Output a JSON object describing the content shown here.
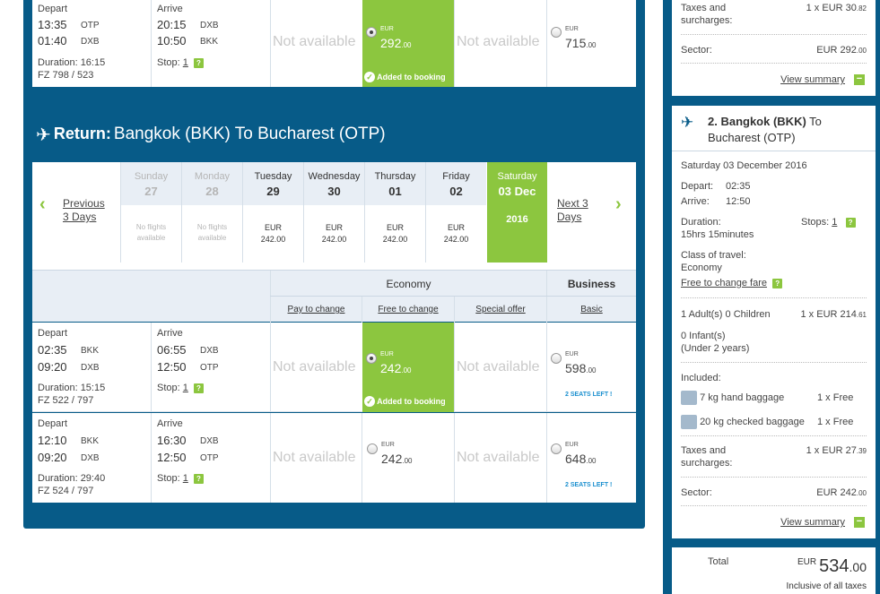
{
  "outbound_row": {
    "depart_label": "Depart",
    "arrive_label": "Arrive",
    "dep1_time": "13:35",
    "dep1_code": "OTP",
    "dep2_time": "01:40",
    "dep2_code": "DXB",
    "arr1_time": "20:15",
    "arr1_code": "DXB",
    "arr2_time": "10:50",
    "arr2_code": "BKK",
    "duration": "Duration: 16:15",
    "flight": "FZ 798 / 523",
    "stop_label": "Stop:",
    "stop_count": "1",
    "na1": "Not available",
    "na2": "Not available",
    "sel_eur": "EUR",
    "sel_price": "292",
    "sel_cents": ".00",
    "added": "Added to booking",
    "biz_eur": "EUR",
    "biz_price": "715",
    "biz_cents": ".00"
  },
  "return_header": {
    "label": "Return:",
    "route": "Bangkok (BKK) To Bucharest (OTP)"
  },
  "dates": {
    "prev": "Previous",
    "prev2": "3 Days",
    "next": "Next 3",
    "next2": "Days",
    "days": [
      {
        "dow": "Sunday",
        "day": "27",
        "p1": "No flights",
        "p2": "available"
      },
      {
        "dow": "Monday",
        "day": "28",
        "p1": "No flights",
        "p2": "available"
      },
      {
        "dow": "Tuesday",
        "day": "29",
        "p1": "EUR",
        "p2": "242.00"
      },
      {
        "dow": "Wednesday",
        "day": "30",
        "p1": "EUR",
        "p2": "242.00"
      },
      {
        "dow": "Thursday",
        "day": "01",
        "p1": "EUR",
        "p2": "242.00"
      },
      {
        "dow": "Friday",
        "day": "02",
        "p1": "EUR",
        "p2": "242.00"
      },
      {
        "dow": "Saturday",
        "day": "03 Dec",
        "p1": "2016",
        "p2": ""
      }
    ]
  },
  "fare_header": {
    "economy": "Economy",
    "business": "Business",
    "pay": "Pay to change",
    "free": "Free to change",
    "special": "Special offer",
    "basic": "Basic"
  },
  "return_rows": [
    {
      "depart_label": "Depart",
      "arrive_label": "Arrive",
      "dep1_time": "02:35",
      "dep1_code": "BKK",
      "dep2_time": "09:20",
      "dep2_code": "DXB",
      "arr1_time": "06:55",
      "arr1_code": "DXB",
      "arr2_time": "12:50",
      "arr2_code": "OTP",
      "duration": "Duration: 15:15",
      "flight": "FZ 522 / 797",
      "stop_label": "Stop:",
      "stop_count": "1",
      "na1": "Not available",
      "na2": "Not available",
      "eco_eur": "EUR",
      "eco_price": "242",
      "eco_cents": ".00",
      "added": "Added to booking",
      "biz_eur": "EUR",
      "biz_price": "598",
      "biz_cents": ".00",
      "seats": "2 SEATS LEFT !"
    },
    {
      "depart_label": "Depart",
      "arrive_label": "Arrive",
      "dep1_time": "12:10",
      "dep1_code": "BKK",
      "dep2_time": "09:20",
      "dep2_code": "DXB",
      "arr1_time": "16:30",
      "arr1_code": "DXB",
      "arr2_time": "12:50",
      "arr2_code": "OTP",
      "duration": "Duration: 29:40",
      "flight": "FZ 524 / 797",
      "stop_label": "Stop:",
      "stop_count": "1",
      "na1": "Not available",
      "na2": "Not available",
      "eco_eur": "EUR",
      "eco_price": "242",
      "eco_cents": ".00",
      "biz_eur": "EUR",
      "biz_price": "648",
      "biz_cents": ".00",
      "seats": "2 SEATS LEFT !"
    }
  ],
  "summary1": {
    "taxes_label": "Taxes and",
    "taxes_label2": "surcharges:",
    "taxes_val": "1 x EUR 30",
    "taxes_cents": ".82",
    "sector_label": "Sector:",
    "sector_val": "EUR 292",
    "sector_cents": ".00",
    "view": "View summary"
  },
  "summary2": {
    "title1": "2. Bangkok (BKK)",
    "title1b": " To",
    "title2": "Bucharest (OTP)",
    "date": "Saturday 03 December 2016",
    "depart_label": "Depart:",
    "depart": "02:35",
    "arrive_label": "Arrive:",
    "arrive": "12:50",
    "duration_label": "Duration:",
    "duration": "15hrs 15minutes",
    "stops_label": "Stops:",
    "stops": "1",
    "class_label": "Class of travel:",
    "class": "Economy",
    "fare_link": "Free to change fare",
    "pax": "1 Adult(s)  0 Children",
    "pax_price": "1 x  EUR 214",
    "pax_cents": ".61",
    "infants": "0 Infant(s)",
    "infants2": "(Under 2 years)",
    "included": "Included:",
    "bag1": "7 kg hand baggage",
    "bag1_val": "1 x Free",
    "bag2": "20 kg checked baggage",
    "bag2_val": "1 x Free",
    "taxes_label": "Taxes and",
    "taxes_label2": "surcharges:",
    "taxes_val": "1 x EUR 27",
    "taxes_cents": ".39",
    "sector_label": "Sector:",
    "sector_val": "EUR 242",
    "sector_cents": ".00",
    "view": "View summary"
  },
  "total": {
    "label": "Total",
    "eur": "EUR",
    "amount": "534",
    "cents": ".00",
    "note": "Inclusive of all taxes"
  },
  "colors": {
    "brand": "#075b88",
    "selected": "#8cc63f",
    "link": "#1a8fcf"
  }
}
